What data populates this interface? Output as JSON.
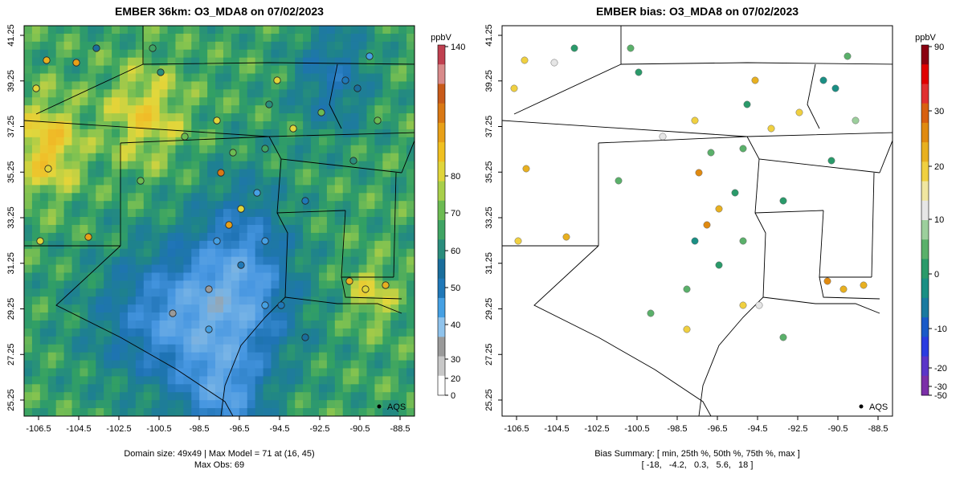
{
  "left_panel": {
    "title": "EMBER 36km: O3_MDA8 on 07/02/2023",
    "footer_line1": "Domain size: 49x49 | Max Model = 71 at (16, 45)",
    "footer_line2": "Max Obs: 69",
    "legend_label": "AQS",
    "colorbar": {
      "unit": "ppbV",
      "ticks": [
        "0",
        "20",
        "30",
        "40",
        "50",
        "60",
        "70",
        "80",
        "140"
      ],
      "colors": [
        "#ffffff",
        "#c8c8c8",
        "#9a9a9a",
        "#8fc3ec",
        "#45a0e3",
        "#1f78b8",
        "#1a6e9c",
        "#2a8d7c",
        "#3fa463",
        "#6cbb52",
        "#a8cf4a",
        "#e0d53a",
        "#f0c020",
        "#e8a018",
        "#d97814",
        "#c85a1a",
        "#d88a8a",
        "#c04050"
      ]
    }
  },
  "right_panel": {
    "title": "EMBER bias: O3_MDA8 on 07/02/2023",
    "footer_line1": "Bias Summary: [ min, 25th %, 50th %, 75th %, max ]",
    "footer_line2": "[ -18,   -4.2,   0.3,   5.6,   18 ]",
    "legend_label": "AQS",
    "colorbar": {
      "unit": "ppbV",
      "ticks": [
        "-50",
        "-30",
        "-20",
        "-10",
        "0",
        "10",
        "20",
        "30",
        "90"
      ],
      "colors": [
        "#7b2fa8",
        "#5a35c8",
        "#2a3ce0",
        "#1a5ac8",
        "#1a7aa0",
        "#1a8f84",
        "#2a9a6a",
        "#5ab06a",
        "#9ccf9c",
        "#e6e6e6",
        "#f0e6a0",
        "#f0d040",
        "#e8b020",
        "#e08a10",
        "#d86010",
        "#e03030",
        "#e00000",
        "#8a0010"
      ]
    }
  },
  "axes": {
    "x_ticks": [
      "-106.5",
      "-104.5",
      "-102.5",
      "-100.5",
      "-98.5",
      "-96.5",
      "-94.5",
      "-92.5",
      "-90.5",
      "-88.5"
    ],
    "y_ticks": [
      "41.25",
      "39.25",
      "37.25",
      "35.25",
      "33.25",
      "31.25",
      "29.25",
      "27.25",
      "25.25"
    ]
  },
  "colors": {
    "frame": "#000000",
    "marker_outline": "#222222"
  }
}
